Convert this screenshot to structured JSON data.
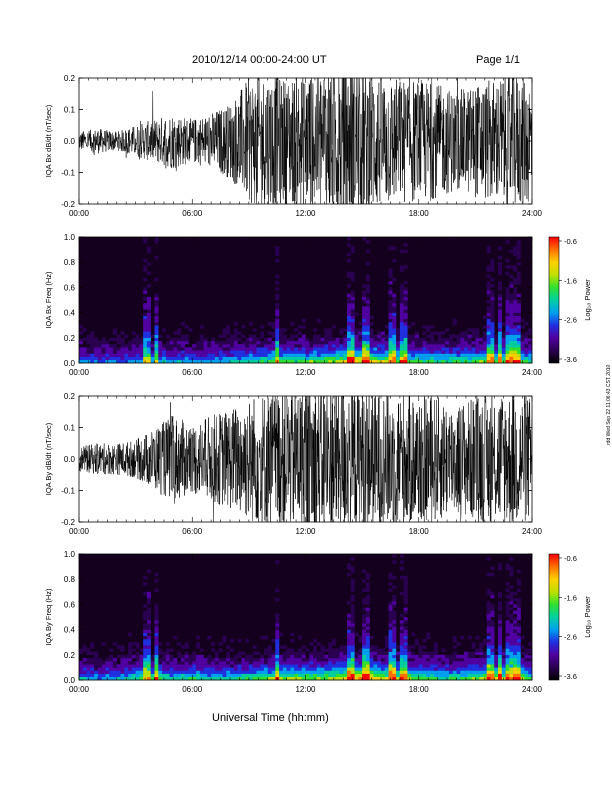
{
  "header": {
    "title": "2010/12/14   00:00-24:00 UT",
    "page": "Page 1/1"
  },
  "footer": {
    "xaxis_title": "Universal Time (hh:mm)"
  },
  "side_stamp": "rdd Wed Sep 22 11:06:43 CST 2010",
  "x_ticks": [
    "00:00",
    "06:00",
    "12:00",
    "18:00",
    "24:00"
  ],
  "colorbar": {
    "ticks": [
      "-0.6",
      "-1.6",
      "-2.6",
      "-3.6"
    ],
    "label": "Log₁₀ Power",
    "colors": [
      "#000000",
      "#2a0050",
      "#5000a0",
      "#2030e0",
      "#00a0f0",
      "#00d0a0",
      "#30e030",
      "#c0e000",
      "#ffd000",
      "#ff7000",
      "#ff0000"
    ]
  },
  "chart_data": [
    {
      "type": "line",
      "ylabel": "IQA Bx dB/dt (nT/sec)",
      "xlabel": "",
      "xlim": [
        0,
        24
      ],
      "ylim": [
        -0.2,
        0.2
      ],
      "yticks": [
        "0.2",
        "0.1",
        "0.0",
        "-0.1",
        "-0.2"
      ],
      "yticks_values": [
        0.2,
        0.1,
        0.0,
        -0.1,
        -0.2
      ],
      "x_hours": [
        0,
        1,
        2,
        3,
        4,
        5,
        6,
        7,
        8,
        9,
        10,
        11,
        12,
        13,
        14,
        15,
        16,
        17,
        18,
        19,
        20,
        21,
        22,
        23,
        24
      ],
      "amplitude": [
        0.03,
        0.04,
        0.03,
        0.05,
        0.07,
        0.09,
        0.07,
        0.09,
        0.12,
        0.2,
        0.22,
        0.2,
        0.22,
        0.25,
        0.25,
        0.25,
        0.22,
        0.2,
        0.2,
        0.18,
        0.16,
        0.18,
        0.2,
        0.22,
        0.2
      ]
    },
    {
      "type": "heatmap",
      "ylabel": "IQA Bx Freq (Hz)",
      "xlabel": "",
      "xlim": [
        0,
        24
      ],
      "ylim": [
        0,
        1
      ],
      "yticks": [
        "1.0",
        "0.8",
        "0.6",
        "0.4",
        "0.2",
        "0.0"
      ],
      "yticks_values": [
        1.0,
        0.8,
        0.6,
        0.4,
        0.2,
        0.0
      ],
      "x_hours": [
        0,
        1,
        2,
        3,
        4,
        5,
        6,
        7,
        8,
        9,
        10,
        11,
        12,
        13,
        14,
        15,
        16,
        17,
        18,
        19,
        20,
        21,
        22,
        23,
        24
      ],
      "low_freq_intensity": [
        0.45,
        0.4,
        0.4,
        0.45,
        0.5,
        0.45,
        0.45,
        0.45,
        0.5,
        0.55,
        0.65,
        0.7,
        0.65,
        0.7,
        0.8,
        0.9,
        0.8,
        0.7,
        0.65,
        0.6,
        0.6,
        0.65,
        0.75,
        0.75,
        0.6
      ],
      "spikes_hours": [
        3.6,
        4.1,
        10.5,
        14.4,
        15.1,
        15.3,
        16.6,
        17.2,
        21.8,
        22.3,
        22.8,
        23.2
      ]
    },
    {
      "type": "line",
      "ylabel": "IQA By dB/dt (nT/sec)",
      "xlabel": "",
      "xlim": [
        0,
        24
      ],
      "ylim": [
        -0.2,
        0.2
      ],
      "yticks": [
        "0.2",
        "0.1",
        "0.0",
        "-0.1",
        "-0.2"
      ],
      "yticks_values": [
        0.2,
        0.1,
        0.0,
        -0.1,
        -0.2
      ],
      "x_hours": [
        0,
        1,
        2,
        3,
        4,
        5,
        6,
        7,
        8,
        9,
        10,
        11,
        12,
        13,
        14,
        15,
        16,
        17,
        18,
        19,
        20,
        21,
        22,
        23,
        24
      ],
      "amplitude": [
        0.04,
        0.05,
        0.05,
        0.06,
        0.1,
        0.14,
        0.11,
        0.14,
        0.16,
        0.2,
        0.22,
        0.22,
        0.24,
        0.25,
        0.25,
        0.25,
        0.23,
        0.22,
        0.21,
        0.2,
        0.18,
        0.2,
        0.22,
        0.22,
        0.2
      ]
    },
    {
      "type": "heatmap",
      "ylabel": "IQA By Freq (Hz)",
      "xlabel": "",
      "xlim": [
        0,
        24
      ],
      "ylim": [
        0,
        1
      ],
      "yticks": [
        "1.0",
        "0.8",
        "0.6",
        "0.4",
        "0.2",
        "0.0"
      ],
      "yticks_values": [
        1.0,
        0.8,
        0.6,
        0.4,
        0.2,
        0.0
      ],
      "x_hours": [
        0,
        1,
        2,
        3,
        4,
        5,
        6,
        7,
        8,
        9,
        10,
        11,
        12,
        13,
        14,
        15,
        16,
        17,
        18,
        19,
        20,
        21,
        22,
        23,
        24
      ],
      "low_freq_intensity": [
        0.5,
        0.45,
        0.45,
        0.6,
        0.65,
        0.55,
        0.6,
        0.55,
        0.55,
        0.6,
        0.7,
        0.75,
        0.7,
        0.75,
        0.85,
        0.95,
        0.85,
        0.75,
        0.7,
        0.65,
        0.65,
        0.7,
        0.8,
        0.8,
        0.65
      ],
      "spikes_hours": [
        3.6,
        4.1,
        10.5,
        14.4,
        15.1,
        15.3,
        16.6,
        17.2,
        21.8,
        22.3,
        22.8,
        23.2
      ]
    }
  ]
}
